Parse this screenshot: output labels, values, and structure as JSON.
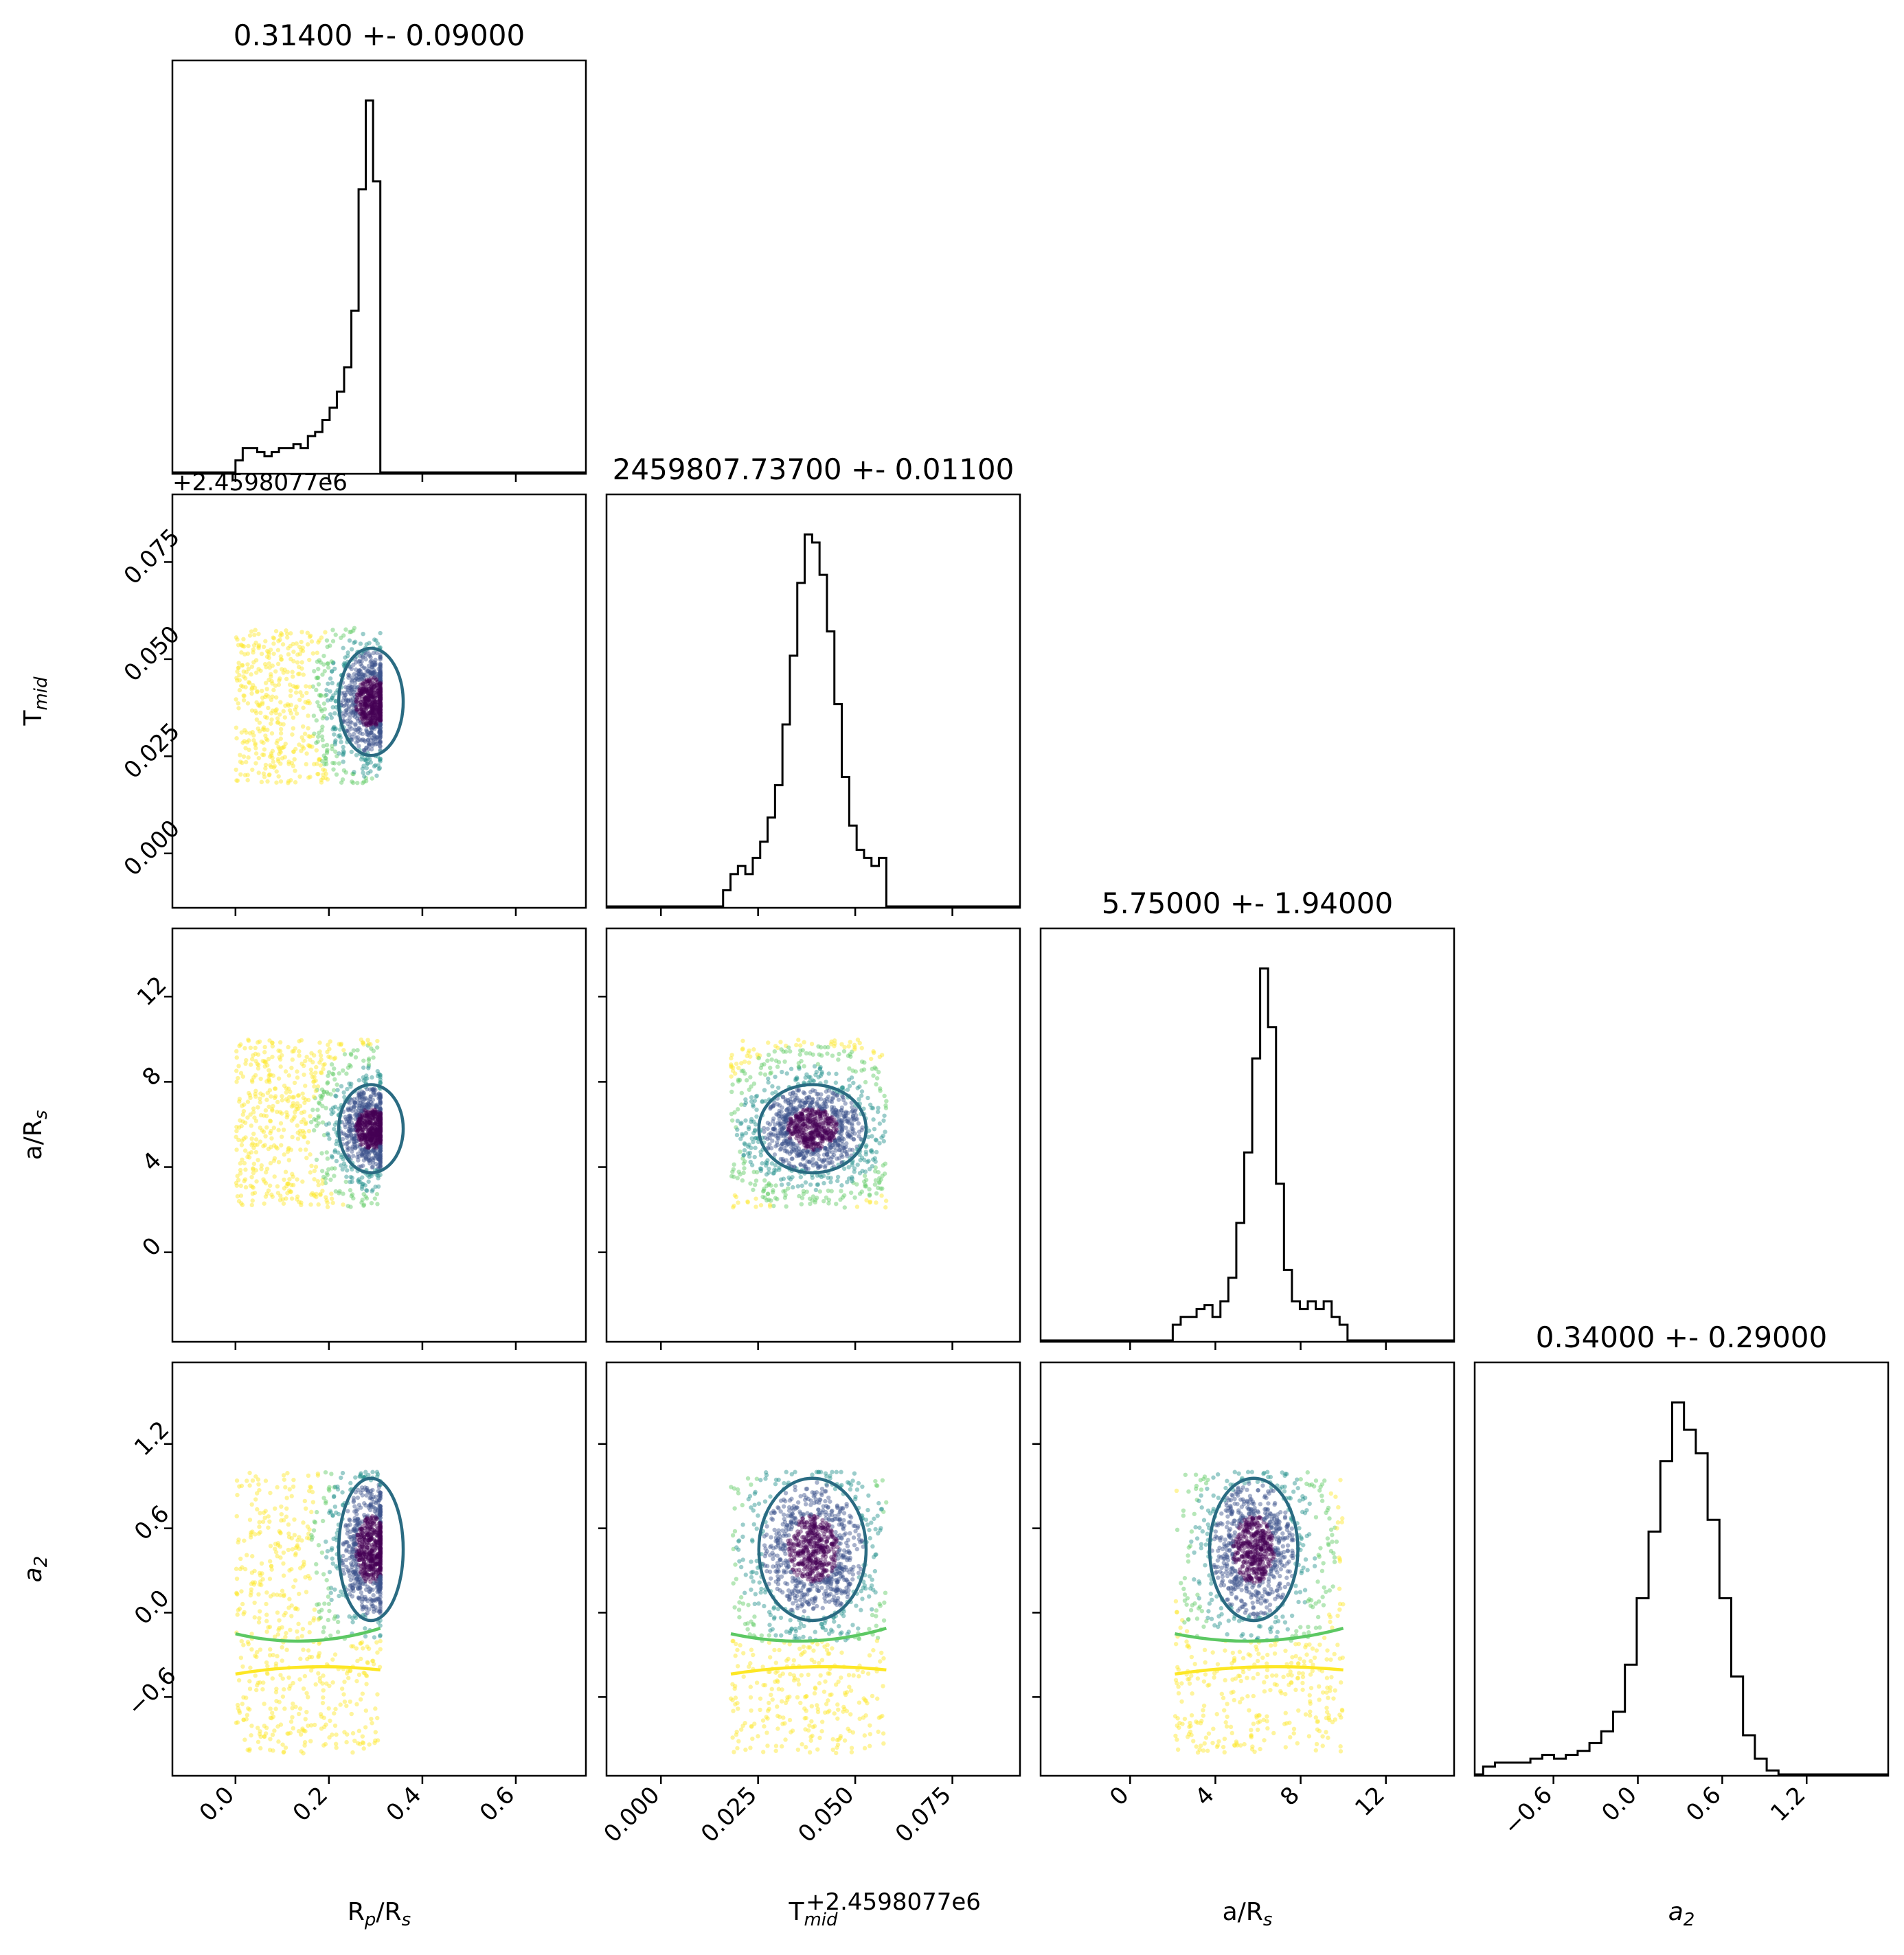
{
  "chart_data": {
    "type": "corner",
    "parameters": [
      {
        "key": "rp",
        "label_main": "R",
        "label_sub": "p",
        "label_tail": "/R",
        "label_sub2": "s"
      },
      {
        "key": "tmid",
        "label_main": "T",
        "label_sub": "mid",
        "label_tail": "",
        "label_sub2": ""
      },
      {
        "key": "ars",
        "label_main": "a/R",
        "label_sub": "s",
        "label_tail": "",
        "label_sub2": ""
      },
      {
        "key": "a2",
        "label_main": "a",
        "label_sub": "2",
        "label_tail": "",
        "label_sub2": "",
        "italic": true
      }
    ],
    "titles": [
      "0.31400 +- 0.09000",
      "2459807.73700 +- 0.01100",
      "5.75000 +- 1.94000",
      "0.34000 +- 0.29000"
    ],
    "offset_text": "+2.4598077e6",
    "ranges": {
      "rp": [
        -0.135,
        0.75
      ],
      "tmid": [
        -0.014,
        0.0924
      ],
      "ars": [
        -4.2,
        15.2
      ],
      "a2": [
        -1.16,
        1.78
      ]
    },
    "ticks": {
      "rp": [
        0.0,
        0.2,
        0.4,
        0.6
      ],
      "tmid": [
        0.0,
        0.025,
        0.05,
        0.075
      ],
      "ars": [
        0,
        4,
        8,
        12
      ],
      "a2": [
        -0.6,
        0.0,
        0.6,
        1.2
      ]
    },
    "tick_labels": {
      "rp": [
        "0.0",
        "0.2",
        "0.4",
        "0.6"
      ],
      "tmid": [
        "0.000",
        "0.025",
        "0.050",
        "0.075"
      ],
      "ars": [
        "0",
        "4",
        "8",
        "12"
      ],
      "a2": [
        "−0.6",
        "0.0",
        "0.6",
        "1.2"
      ]
    },
    "histograms": {
      "rp": {
        "bins": [
          0.0,
          0.31
        ],
        "counts": [
          3,
          6,
          6,
          5,
          4,
          5,
          6,
          6,
          7,
          6,
          9,
          10,
          13,
          16,
          20,
          26,
          40,
          70,
          92,
          72
        ]
      },
      "tmid": {
        "bins": [
          0.016,
          0.058
        ],
        "counts": [
          4,
          8,
          10,
          8,
          12,
          16,
          22,
          30,
          45,
          62,
          80,
          92,
          90,
          82,
          68,
          50,
          32,
          20,
          14,
          12,
          10,
          12
        ]
      },
      "ars": {
        "bins": [
          2.0,
          10.2
        ],
        "counts": [
          4,
          6,
          6,
          8,
          9,
          6,
          10,
          16,
          30,
          48,
          72,
          95,
          80,
          40,
          18,
          10,
          8,
          10,
          8,
          10,
          6,
          4
        ]
      },
      "a2": {
        "bins": [
          -1.1,
          1.0
        ],
        "counts": [
          2,
          3,
          3,
          3,
          4,
          5,
          4,
          5,
          6,
          8,
          11,
          16,
          28,
          45,
          62,
          80,
          95,
          88,
          82,
          65,
          45,
          25,
          10,
          4,
          1
        ]
      }
    },
    "scatter_colormap": [
      "#440154",
      "#3b528b",
      "#21918c",
      "#5ec962",
      "#fde725"
    ],
    "contour_colors": [
      "#2a6b82",
      "#5cc863",
      "#fde725"
    ],
    "grid": false,
    "legend": "none"
  }
}
